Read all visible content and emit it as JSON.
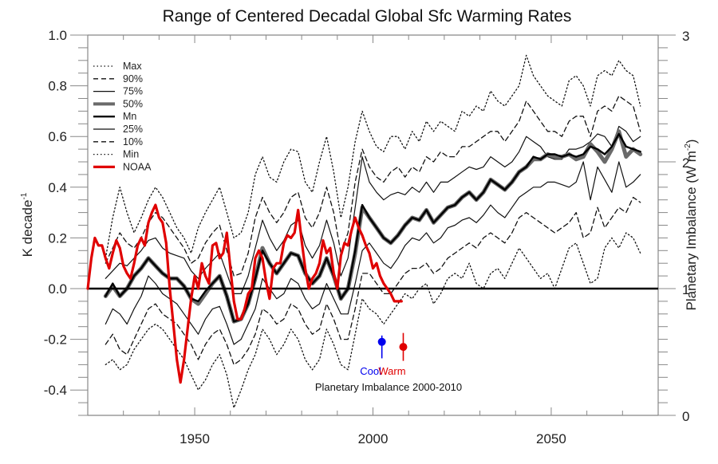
{
  "chart_data": {
    "type": "line",
    "title": "Range of Centered Decadal Global Sfc Warming Rates",
    "xlabel": "",
    "ylabel": "K decade",
    "ylabel_superscript": "-1",
    "y2label": "Planetary Imbalance  (W m",
    "y2label_superscript": "-2",
    "y2label_close": ")",
    "xlim": [
      1920,
      2080
    ],
    "ylim": [
      -0.5,
      1.0
    ],
    "y2lim": [
      0,
      3
    ],
    "xticks": [
      1950,
      2000,
      2050
    ],
    "xtick_labels": [
      "1950",
      "2000",
      "2050"
    ],
    "xminor_step": 10,
    "yticks": [
      -0.4,
      -0.2,
      0.0,
      0.2,
      0.4,
      0.6,
      0.8,
      1.0
    ],
    "ytick_labels": [
      "-0.4",
      "-0.2",
      "0.0",
      "0.2",
      "0.4",
      "0.6",
      "0.8",
      "1.0"
    ],
    "yminor_step": 0.05,
    "y2ticks": [
      0,
      1,
      2,
      3
    ],
    "y2tick_labels": [
      "0",
      "1",
      "2",
      "3"
    ],
    "y2minor_step": 0.1,
    "zero_line": 0.0,
    "grid": false,
    "legend_position": "top-left",
    "legend": [
      {
        "key": "max",
        "label": "Max"
      },
      {
        "key": "p90",
        "label": "90%"
      },
      {
        "key": "p75",
        "label": "75%"
      },
      {
        "key": "p50",
        "label": "50%"
      },
      {
        "key": "mn",
        "label": "Mn"
      },
      {
        "key": "p25",
        "label": "25%"
      },
      {
        "key": "p10",
        "label": "10%"
      },
      {
        "key": "min",
        "label": "Min"
      },
      {
        "key": "noaa",
        "label": "NOAA"
      }
    ],
    "model_x": [
      1925,
      1927,
      1929,
      1931,
      1933,
      1935,
      1937,
      1939,
      1941,
      1943,
      1945,
      1947,
      1949,
      1951,
      1953,
      1955,
      1957,
      1959,
      1961,
      1963,
      1965,
      1967,
      1969,
      1971,
      1973,
      1975,
      1977,
      1979,
      1981,
      1983,
      1985,
      1987,
      1989,
      1991,
      1993,
      1995,
      1997,
      1999,
      2001,
      2003,
      2005,
      2007,
      2009,
      2011,
      2013,
      2015,
      2017,
      2019,
      2021,
      2023,
      2025,
      2027,
      2029,
      2031,
      2033,
      2035,
      2037,
      2039,
      2041,
      2043,
      2045,
      2047,
      2049,
      2051,
      2053,
      2055,
      2057,
      2059,
      2061,
      2063,
      2065,
      2067,
      2069,
      2071,
      2073,
      2075
    ],
    "series": [
      {
        "name": "Max",
        "key": "max",
        "values": [
          0.12,
          0.28,
          0.4,
          0.3,
          0.22,
          0.28,
          0.35,
          0.4,
          0.36,
          0.3,
          0.24,
          0.2,
          0.14,
          0.24,
          0.3,
          0.35,
          0.4,
          0.3,
          0.2,
          0.22,
          0.3,
          0.45,
          0.52,
          0.44,
          0.42,
          0.5,
          0.55,
          0.54,
          0.42,
          0.38,
          0.5,
          0.6,
          0.46,
          0.28,
          0.4,
          0.58,
          0.7,
          0.62,
          0.56,
          0.54,
          0.6,
          0.6,
          0.55,
          0.62,
          0.58,
          0.66,
          0.62,
          0.66,
          0.64,
          0.62,
          0.7,
          0.68,
          0.72,
          0.7,
          0.78,
          0.74,
          0.72,
          0.76,
          0.8,
          0.92,
          0.84,
          0.8,
          0.76,
          0.74,
          0.72,
          0.82,
          0.84,
          0.8,
          0.72,
          0.84,
          0.86,
          0.84,
          0.9,
          0.86,
          0.84,
          0.72
        ]
      },
      {
        "name": "90%",
        "key": "p90",
        "values": [
          0.1,
          0.16,
          0.22,
          0.18,
          0.16,
          0.2,
          0.26,
          0.3,
          0.28,
          0.24,
          0.2,
          0.16,
          0.1,
          0.12,
          0.18,
          0.22,
          0.25,
          0.15,
          0.05,
          0.06,
          0.14,
          0.28,
          0.36,
          0.3,
          0.26,
          0.3,
          0.36,
          0.38,
          0.28,
          0.24,
          0.3,
          0.4,
          0.3,
          0.14,
          0.22,
          0.42,
          0.55,
          0.48,
          0.44,
          0.42,
          0.46,
          0.48,
          0.44,
          0.48,
          0.46,
          0.52,
          0.5,
          0.54,
          0.52,
          0.52,
          0.56,
          0.56,
          0.58,
          0.6,
          0.62,
          0.62,
          0.58,
          0.62,
          0.66,
          0.74,
          0.7,
          0.66,
          0.62,
          0.62,
          0.6,
          0.66,
          0.68,
          0.68,
          0.6,
          0.7,
          0.72,
          0.7,
          0.76,
          0.74,
          0.72,
          0.62
        ]
      },
      {
        "name": "75%",
        "key": "p75",
        "values": [
          0.04,
          0.07,
          0.1,
          0.09,
          0.12,
          0.15,
          0.19,
          0.2,
          0.16,
          0.14,
          0.13,
          0.12,
          0.07,
          0.04,
          0.08,
          0.11,
          0.14,
          0.06,
          -0.02,
          -0.02,
          0.05,
          0.16,
          0.27,
          0.2,
          0.15,
          0.19,
          0.25,
          0.27,
          0.17,
          0.12,
          0.17,
          0.27,
          0.18,
          0.05,
          0.12,
          0.32,
          0.52,
          0.42,
          0.38,
          0.35,
          0.37,
          0.38,
          0.37,
          0.4,
          0.38,
          0.42,
          0.38,
          0.42,
          0.42,
          0.44,
          0.46,
          0.48,
          0.47,
          0.48,
          0.52,
          0.5,
          0.48,
          0.5,
          0.54,
          0.6,
          0.58,
          0.56,
          0.52,
          0.51,
          0.51,
          0.55,
          0.55,
          0.56,
          0.58,
          0.61,
          0.6,
          0.56,
          0.64,
          0.62,
          0.58,
          0.6
        ]
      },
      {
        "name": "50%",
        "key": "p50",
        "values": [
          -0.03,
          0.01,
          -0.03,
          0.0,
          0.05,
          0.08,
          0.12,
          0.09,
          0.06,
          0.04,
          0.04,
          0.01,
          -0.04,
          -0.06,
          -0.02,
          0.02,
          0.05,
          -0.03,
          -0.13,
          -0.12,
          -0.06,
          0.04,
          0.16,
          0.1,
          0.06,
          0.1,
          0.14,
          0.13,
          0.06,
          0.02,
          0.05,
          0.12,
          0.05,
          -0.04,
          0.0,
          0.14,
          0.32,
          0.28,
          0.24,
          0.2,
          0.18,
          0.21,
          0.25,
          0.28,
          0.27,
          0.31,
          0.26,
          0.29,
          0.32,
          0.33,
          0.36,
          0.38,
          0.35,
          0.38,
          0.43,
          0.41,
          0.39,
          0.42,
          0.46,
          0.48,
          0.51,
          0.51,
          0.53,
          0.52,
          0.52,
          0.53,
          0.51,
          0.52,
          0.57,
          0.54,
          0.5,
          0.55,
          0.62,
          0.52,
          0.55,
          0.53
        ]
      },
      {
        "name": "Mn",
        "key": "mn",
        "values": [
          -0.03,
          0.02,
          -0.03,
          0.0,
          0.05,
          0.08,
          0.12,
          0.09,
          0.06,
          0.04,
          0.04,
          0.01,
          -0.04,
          -0.05,
          -0.01,
          0.02,
          0.05,
          -0.03,
          -0.13,
          -0.12,
          -0.06,
          0.04,
          0.15,
          0.1,
          0.06,
          0.1,
          0.14,
          0.13,
          0.06,
          0.02,
          0.05,
          0.12,
          0.05,
          -0.04,
          0.0,
          0.15,
          0.33,
          0.28,
          0.24,
          0.2,
          0.18,
          0.21,
          0.25,
          0.28,
          0.27,
          0.31,
          0.26,
          0.29,
          0.32,
          0.33,
          0.36,
          0.38,
          0.35,
          0.38,
          0.43,
          0.41,
          0.39,
          0.42,
          0.46,
          0.48,
          0.52,
          0.51,
          0.53,
          0.53,
          0.52,
          0.53,
          0.52,
          0.53,
          0.56,
          0.55,
          0.53,
          0.56,
          0.61,
          0.56,
          0.55,
          0.54
        ]
      },
      {
        "name": "25%",
        "key": "p25",
        "values": [
          -0.14,
          -0.08,
          -0.1,
          -0.14,
          -0.08,
          -0.03,
          0.05,
          0.02,
          -0.02,
          -0.04,
          -0.06,
          -0.1,
          -0.14,
          -0.18,
          -0.12,
          -0.08,
          -0.07,
          -0.14,
          -0.22,
          -0.2,
          -0.14,
          -0.08,
          0.04,
          0.0,
          -0.04,
          -0.02,
          0.04,
          0.02,
          -0.04,
          -0.08,
          -0.06,
          0.02,
          -0.04,
          -0.1,
          -0.1,
          0.02,
          0.15,
          0.18,
          0.14,
          0.1,
          0.08,
          0.12,
          0.17,
          0.2,
          0.19,
          0.22,
          0.18,
          0.2,
          0.24,
          0.25,
          0.27,
          0.28,
          0.26,
          0.29,
          0.33,
          0.3,
          0.28,
          0.32,
          0.36,
          0.38,
          0.4,
          0.4,
          0.42,
          0.42,
          0.41,
          0.4,
          0.42,
          0.5,
          0.35,
          0.48,
          0.43,
          0.38,
          0.5,
          0.4,
          0.42,
          0.45
        ]
      },
      {
        "name": "10%",
        "key": "p10",
        "values": [
          -0.22,
          -0.18,
          -0.24,
          -0.26,
          -0.2,
          -0.14,
          -0.08,
          -0.06,
          -0.1,
          -0.12,
          -0.14,
          -0.18,
          -0.22,
          -0.28,
          -0.22,
          -0.18,
          -0.16,
          -0.22,
          -0.3,
          -0.28,
          -0.24,
          -0.18,
          -0.08,
          -0.1,
          -0.14,
          -0.12,
          -0.06,
          -0.08,
          -0.14,
          -0.18,
          -0.16,
          -0.06,
          -0.12,
          -0.2,
          -0.2,
          -0.08,
          0.06,
          0.06,
          0.02,
          -0.02,
          -0.02,
          0.02,
          0.06,
          0.08,
          0.08,
          0.1,
          0.06,
          0.08,
          0.12,
          0.14,
          0.16,
          0.18,
          0.16,
          0.2,
          0.22,
          0.2,
          0.18,
          0.22,
          0.28,
          0.3,
          0.28,
          0.26,
          0.24,
          0.22,
          0.24,
          0.26,
          0.3,
          0.2,
          0.22,
          0.32,
          0.24,
          0.28,
          0.32,
          0.3,
          0.36,
          0.34
        ]
      },
      {
        "name": "Min",
        "key": "min",
        "values": [
          -0.3,
          -0.28,
          -0.32,
          -0.3,
          -0.24,
          -0.2,
          -0.16,
          -0.14,
          -0.16,
          -0.2,
          -0.24,
          -0.28,
          -0.34,
          -0.4,
          -0.36,
          -0.3,
          -0.26,
          -0.34,
          -0.47,
          -0.4,
          -0.32,
          -0.26,
          -0.16,
          -0.2,
          -0.26,
          -0.22,
          -0.16,
          -0.2,
          -0.28,
          -0.32,
          -0.28,
          -0.16,
          -0.22,
          -0.3,
          -0.32,
          -0.18,
          -0.04,
          -0.08,
          -0.1,
          -0.14,
          -0.1,
          -0.06,
          -0.02,
          -0.04,
          0.0,
          0.02,
          -0.06,
          -0.02,
          0.04,
          0.06,
          0.04,
          0.1,
          0.02,
          0.0,
          0.06,
          0.08,
          0.04,
          0.1,
          0.16,
          0.12,
          0.08,
          0.04,
          0.06,
          0.0,
          0.08,
          0.16,
          0.18,
          0.1,
          0.02,
          0.04,
          0.16,
          0.2,
          0.16,
          0.22,
          0.2,
          0.14
        ]
      },
      {
        "name": "NOAA",
        "key": "noaa",
        "x": [
          1920,
          1921,
          1922,
          1923,
          1924,
          1925,
          1926,
          1927,
          1928,
          1929,
          1930,
          1931,
          1932,
          1933,
          1934,
          1935,
          1936,
          1937,
          1938,
          1939,
          1940,
          1941,
          1942,
          1943,
          1944,
          1945,
          1946,
          1947,
          1948,
          1949,
          1950,
          1951,
          1952,
          1953,
          1954,
          1955,
          1956,
          1957,
          1958,
          1959,
          1960,
          1961,
          1962,
          1963,
          1964,
          1965,
          1966,
          1967,
          1968,
          1969,
          1970,
          1971,
          1972,
          1973,
          1974,
          1975,
          1976,
          1977,
          1978,
          1979,
          1980,
          1981,
          1982,
          1983,
          1984,
          1985,
          1986,
          1987,
          1988,
          1989,
          1990,
          1991,
          1992,
          1993,
          1994,
          1995,
          1996,
          1997,
          1998,
          1999,
          2000,
          2001,
          2002,
          2003,
          2004,
          2005,
          2006,
          2007,
          2008
        ],
        "values": [
          0.0,
          0.12,
          0.2,
          0.17,
          0.17,
          0.12,
          0.08,
          0.14,
          0.19,
          0.16,
          0.09,
          0.06,
          0.04,
          0.1,
          0.17,
          0.2,
          0.17,
          0.26,
          0.3,
          0.33,
          0.28,
          0.26,
          0.18,
          0.0,
          -0.14,
          -0.28,
          -0.37,
          -0.28,
          -0.16,
          -0.04,
          0.05,
          0.0,
          0.1,
          0.05,
          0.02,
          0.17,
          0.18,
          0.12,
          0.14,
          0.22,
          0.08,
          -0.05,
          -0.12,
          -0.12,
          -0.08,
          -0.02,
          0.0,
          0.12,
          0.15,
          0.12,
          0.03,
          -0.04,
          0.08,
          0.1,
          0.1,
          0.18,
          0.21,
          0.2,
          0.22,
          0.31,
          0.19,
          0.08,
          0.0,
          0.04,
          0.06,
          0.1,
          0.19,
          0.14,
          0.16,
          0.06,
          0.0,
          0.13,
          0.18,
          0.17,
          0.23,
          0.28,
          0.24,
          0.21,
          0.17,
          0.14,
          0.08,
          0.1,
          0.05,
          0.02,
          0.0,
          -0.02,
          -0.05,
          -0.05,
          -0.05
        ]
      }
    ],
    "annotations": {
      "title": "Planetary Imbalance 2000-2010",
      "points": [
        {
          "label": "Cool",
          "color": "#0000ee",
          "year": 2002.5,
          "value_wm2": 0.58,
          "low_wm2": 0.45,
          "high_wm2": 0.63
        },
        {
          "label": "Warm",
          "color": "#e00000",
          "year": 2008.5,
          "value_wm2": 0.54,
          "low_wm2": 0.43,
          "high_wm2": 0.65
        }
      ]
    },
    "colors": {
      "noaa": "#e00000",
      "mn": "#000000",
      "p50": "#6a6a6a",
      "lines": "#111111",
      "axis": "#888888",
      "zero": "#000000"
    }
  }
}
